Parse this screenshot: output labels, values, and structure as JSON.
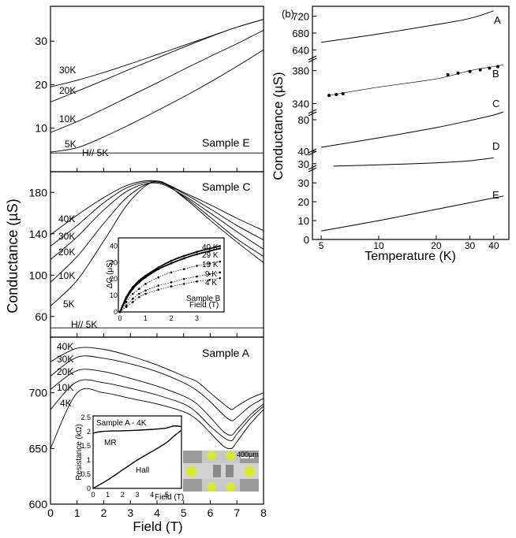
{
  "chart_data": [
    {
      "type": "line",
      "panel": "left-top",
      "annotation": "Sample E",
      "xlim": [
        0,
        8
      ],
      "ylim": [
        0,
        38
      ],
      "yticks": [
        10,
        20,
        30
      ],
      "series": [
        {
          "name": "30K",
          "x": [
            0,
            1,
            2,
            3,
            4,
            5,
            6,
            7,
            8
          ],
          "values": [
            19.5,
            21,
            22.8,
            24.8,
            26.9,
            29,
            31.1,
            33.2,
            35
          ]
        },
        {
          "name": "20K",
          "x": [
            0,
            1,
            2,
            3,
            4,
            5,
            6,
            7,
            8
          ],
          "values": [
            16,
            18.5,
            21,
            23.6,
            26.1,
            28.6,
            31,
            33.2,
            35
          ]
        },
        {
          "name": "10K",
          "x": [
            0,
            1,
            2,
            3,
            4,
            5,
            6,
            7,
            8
          ],
          "values": [
            9,
            11.5,
            14.4,
            17.4,
            20.4,
            23.5,
            26.5,
            29.4,
            32.5
          ]
        },
        {
          "name": "5K",
          "x": [
            0,
            1,
            2,
            3,
            4,
            5,
            6,
            7,
            8
          ],
          "values": [
            4.5,
            5.5,
            8,
            10.9,
            14,
            17.2,
            20.6,
            24.2,
            28
          ]
        },
        {
          "name": "H// 5K",
          "x": [
            0,
            8
          ],
          "values": [
            4.3,
            4.3
          ]
        }
      ]
    },
    {
      "type": "line",
      "panel": "left-middle",
      "annotation": "Sample C",
      "xlim": [
        0,
        8
      ],
      "ylim": [
        40,
        200
      ],
      "yticks": [
        60,
        100,
        140,
        180
      ],
      "series": [
        {
          "name": "40K",
          "x": [
            0,
            1,
            2,
            3,
            4,
            5,
            6,
            7,
            8
          ],
          "values": [
            139,
            158,
            175,
            188,
            191,
            180,
            168,
            155,
            143
          ]
        },
        {
          "name": "30K",
          "x": [
            0,
            1,
            2,
            3,
            4,
            5,
            6,
            7,
            8
          ],
          "values": [
            128,
            148,
            170,
            186,
            190,
            179,
            164,
            148,
            134
          ]
        },
        {
          "name": "20K",
          "x": [
            0,
            1,
            2,
            3,
            4,
            5,
            6,
            7,
            8
          ],
          "values": [
            115,
            137,
            163,
            183,
            189,
            177,
            160,
            142,
            125
          ]
        },
        {
          "name": "10K",
          "x": [
            0,
            1,
            2,
            3,
            4,
            5,
            6,
            7,
            8
          ],
          "values": [
            93,
            118,
            150,
            178,
            190,
            176,
            156,
            135,
            118
          ]
        },
        {
          "name": "5K",
          "x": [
            0,
            1,
            2,
            3,
            4,
            5,
            6,
            7,
            8
          ],
          "values": [
            70,
            95,
            133,
            172,
            191,
            175,
            153,
            132,
            112
          ]
        },
        {
          "name": "H// 5K",
          "x": [
            0,
            8
          ],
          "values": [
            49,
            49
          ]
        }
      ]
    },
    {
      "type": "scatter",
      "panel": "inset-sample-b",
      "annotation": "Sample B",
      "xlabel": "Field (T)",
      "ylabel": "ΔG (µS)",
      "xlim": [
        0,
        4
      ],
      "ylim": [
        0,
        44
      ],
      "xticks": [
        0,
        1,
        2,
        3
      ],
      "yticks": [
        0,
        10,
        20,
        30,
        40
      ],
      "series": [
        {
          "name": "40 K",
          "x": [
            0,
            0.25,
            0.5,
            0.75,
            1,
            1.5,
            2,
            2.5,
            3,
            3.5,
            3.9
          ],
          "values": [
            0,
            9,
            15,
            19,
            22,
            27,
            31,
            34,
            36.5,
            38.5,
            40
          ]
        },
        {
          "name": "29 K",
          "x": [
            0,
            0.25,
            0.5,
            0.75,
            1,
            1.5,
            2,
            2.5,
            3,
            3.5,
            3.9
          ],
          "values": [
            0,
            8,
            14,
            18,
            21,
            26,
            29.5,
            32.5,
            35,
            37,
            38.5
          ]
        },
        {
          "name": "19 K",
          "x": [
            0,
            0.25,
            0.5,
            0.75,
            1,
            1.5,
            2,
            2.5,
            3,
            3.5,
            3.9
          ],
          "values": [
            0,
            6,
            11,
            14,
            17,
            21,
            24,
            26,
            28,
            29.5,
            30.5
          ]
        },
        {
          "name": "9 K",
          "x": [
            0,
            0.25,
            0.5,
            0.75,
            1,
            1.5,
            2,
            2.5,
            3,
            3.5,
            3.9
          ],
          "values": [
            0,
            4,
            8,
            11,
            13,
            16,
            18,
            20,
            21.5,
            23,
            24
          ]
        },
        {
          "name": "4 K",
          "x": [
            0,
            0.25,
            0.5,
            0.75,
            1,
            1.5,
            2,
            2.5,
            3,
            3.5,
            3.9
          ],
          "values": [
            0,
            3,
            6,
            9,
            11,
            13.5,
            15.5,
            17,
            18.5,
            19.5,
            20.5
          ]
        }
      ]
    },
    {
      "type": "line",
      "panel": "left-bottom",
      "annotation": "Sample A",
      "xlabel": "Field (T)",
      "xlim": [
        0,
        8
      ],
      "ylim": [
        600,
        750
      ],
      "xticks": [
        0,
        1,
        2,
        3,
        4,
        5,
        6,
        7,
        8
      ],
      "yticks": [
        600,
        650,
        700
      ],
      "series": [
        {
          "name": "40K",
          "x": [
            0,
            1,
            2,
            3,
            4,
            5,
            5.5,
            6,
            6.5,
            6.8,
            7,
            7.5,
            8
          ],
          "values": [
            728,
            740,
            739,
            733,
            725,
            715,
            710,
            700,
            690,
            685,
            688,
            695,
            700
          ]
        },
        {
          "name": "30K",
          "x": [
            0,
            1,
            2,
            3,
            4,
            5,
            5.5,
            6,
            6.5,
            6.8,
            7,
            7.5,
            8
          ],
          "values": [
            715,
            732,
            731,
            726,
            719,
            709,
            702,
            692,
            680,
            675,
            678,
            688,
            695
          ]
        },
        {
          "name": "20K",
          "x": [
            0,
            1,
            2,
            3,
            4,
            5,
            5.5,
            6,
            6.5,
            6.8,
            7,
            7.5,
            8
          ],
          "values": [
            703,
            720,
            719,
            713,
            706,
            697,
            690,
            678,
            665,
            662,
            667,
            680,
            690
          ]
        },
        {
          "name": "10K",
          "x": [
            0,
            1,
            2,
            3,
            4,
            5,
            5.5,
            6,
            6.5,
            6.8,
            7,
            7.5,
            8
          ],
          "values": [
            685,
            710,
            709,
            704,
            698,
            690,
            682,
            670,
            660,
            657,
            663,
            677,
            688
          ]
        },
        {
          "name": "4K",
          "x": [
            0,
            1,
            2,
            3,
            4,
            5,
            5.5,
            6,
            6.5,
            6.8,
            7,
            7.5,
            8
          ],
          "values": [
            650,
            700,
            700,
            695,
            690,
            683,
            676,
            664,
            652,
            650,
            656,
            672,
            685
          ]
        }
      ]
    },
    {
      "type": "line",
      "panel": "inset-sample-a",
      "annotation": "Sample A - 4K",
      "xlabel": "Field (T)",
      "ylabel": "Resistance (kΩ)",
      "xlim": [
        0,
        6
      ],
      "ylim": [
        0,
        2.5
      ],
      "xticks": [
        0,
        1,
        2,
        3,
        4,
        5
      ],
      "yticks": [
        0,
        0.5,
        1,
        1.5,
        2,
        2.5
      ],
      "series": [
        {
          "name": "MR",
          "x": [
            0,
            0.5,
            1,
            2,
            3,
            4,
            4.5,
            5,
            5.5,
            6
          ],
          "values": [
            1.95,
            2,
            2.02,
            2.03,
            2.05,
            2.08,
            2.1,
            2.13,
            2.2,
            2.18
          ]
        },
        {
          "name": "Hall",
          "x": [
            0,
            1,
            2,
            3,
            4,
            5,
            5.5,
            6
          ],
          "values": [
            0,
            0.3,
            0.65,
            1,
            1.3,
            1.62,
            1.85,
            2.05
          ]
        }
      ],
      "labels": [
        "MR",
        "Hall"
      ]
    },
    {
      "type": "image",
      "panel": "device-photo",
      "scale_label": "400µm"
    },
    {
      "type": "line",
      "panel": "right",
      "label": "(b)",
      "xlabel": "Temperature (K)",
      "ylabel": "Conductance (µS)",
      "x_scale": "log",
      "xlim": [
        4.5,
        48
      ],
      "xticks": [
        5,
        10,
        20,
        30,
        40
      ],
      "segments": [
        {
          "name": "A",
          "ylim": [
            620,
            740
          ],
          "yticks": [
            640,
            680,
            720
          ],
          "x": [
            5,
            10,
            20,
            30,
            40
          ],
          "values": [
            658,
            678,
            700,
            715,
            733
          ]
        },
        {
          "name": "B",
          "ylim": [
            330,
            395
          ],
          "yticks": [
            340,
            380
          ],
          "x": [
            5.5,
            10,
            20,
            30,
            40,
            45
          ],
          "values": [
            350,
            360,
            370,
            380,
            385,
            387
          ],
          "points": [
            [
              5.5,
              350
            ],
            [
              6,
              351
            ],
            [
              6.5,
              352
            ],
            [
              23,
              375
            ],
            [
              26,
              377
            ],
            [
              30,
              379
            ],
            [
              34,
              381
            ],
            [
              38,
              383
            ],
            [
              42,
              385
            ]
          ]
        },
        {
          "name": "C",
          "ylim": [
            40,
            90
          ],
          "yticks": [
            40,
            80
          ],
          "x": [
            5,
            10,
            20,
            30,
            40,
            45
          ],
          "values": [
            45,
            57,
            70,
            79,
            86,
            90
          ]
        },
        {
          "name": "D",
          "ylim": [
            25,
            45
          ],
          "yticks": [
            30
          ],
          "x": [
            5.8,
            10,
            20,
            30,
            40
          ],
          "values": [
            27,
            28.5,
            31,
            33.5,
            37
          ]
        },
        {
          "name": "E",
          "ylim": [
            0,
            38
          ],
          "yticks": [
            0,
            10,
            20,
            30
          ],
          "x": [
            5,
            10,
            20,
            30,
            40,
            45
          ],
          "values": [
            4.5,
            10,
            16,
            19.5,
            22,
            23
          ]
        }
      ]
    }
  ],
  "labels": {
    "shared_ylabel": "Conductance (µS)",
    "xlabel_left": "Field (T)",
    "xlabel_right": "Temperature (K)",
    "panel_b": "(b)"
  }
}
